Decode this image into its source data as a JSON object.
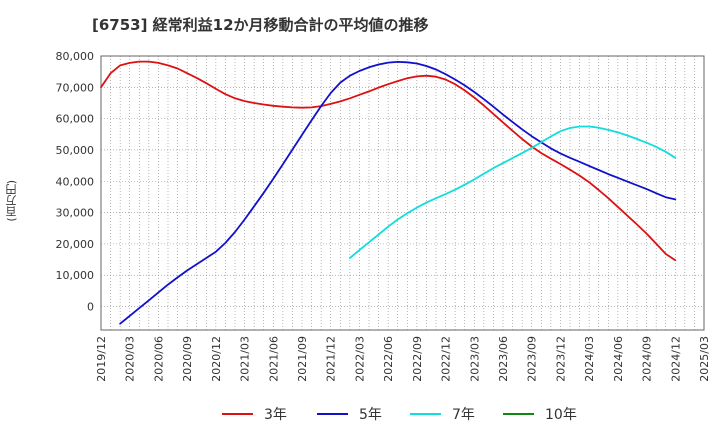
{
  "chart_data": {
    "type": "line",
    "title": "[6753]  経常利益12か月移動合計の平均値の推移",
    "ylabel": "(百万円)",
    "xlabel": "",
    "ylim": [
      -7500,
      80000
    ],
    "yticks": [
      0,
      10000,
      20000,
      30000,
      40000,
      50000,
      60000,
      70000,
      80000
    ],
    "ytick_labels": [
      "0",
      "10,000",
      "20,000",
      "30,000",
      "40,000",
      "50,000",
      "60,000",
      "70,000",
      "80,000"
    ],
    "xticks": [
      "2019/12",
      "2020/03",
      "2020/06",
      "2020/09",
      "2020/12",
      "2021/03",
      "2021/06",
      "2021/09",
      "2021/12",
      "2022/03",
      "2022/06",
      "2022/09",
      "2022/12",
      "2023/03",
      "2023/06",
      "2023/09",
      "2023/12",
      "2024/03",
      "2024/06",
      "2024/09",
      "2024/12",
      "2025/03"
    ],
    "grid": true,
    "legend_position": "bottom",
    "series": [
      {
        "name": "3年",
        "color": "#dd1111",
        "points": [
          [
            "2019/12",
            70000
          ],
          [
            "2020/01",
            74500
          ],
          [
            "2020/02",
            77000
          ],
          [
            "2020/03",
            77800
          ],
          [
            "2020/04",
            78200
          ],
          [
            "2020/05",
            78200
          ],
          [
            "2020/06",
            77800
          ],
          [
            "2020/07",
            77000
          ],
          [
            "2020/08",
            76000
          ],
          [
            "2020/09",
            74500
          ],
          [
            "2020/10",
            73000
          ],
          [
            "2020/11",
            71300
          ],
          [
            "2020/12",
            69500
          ],
          [
            "2021/01",
            67800
          ],
          [
            "2021/02",
            66500
          ],
          [
            "2021/03",
            65600
          ],
          [
            "2021/04",
            65000
          ],
          [
            "2021/05",
            64500
          ],
          [
            "2021/06",
            64100
          ],
          [
            "2021/07",
            63800
          ],
          [
            "2021/08",
            63600
          ],
          [
            "2021/09",
            63500
          ],
          [
            "2021/10",
            63600
          ],
          [
            "2021/11",
            64000
          ],
          [
            "2021/12",
            64700
          ],
          [
            "2022/01",
            65500
          ],
          [
            "2022/02",
            66500
          ],
          [
            "2022/03",
            67600
          ],
          [
            "2022/04",
            68700
          ],
          [
            "2022/05",
            69900
          ],
          [
            "2022/06",
            71000
          ],
          [
            "2022/07",
            72000
          ],
          [
            "2022/08",
            72900
          ],
          [
            "2022/09",
            73500
          ],
          [
            "2022/10",
            73700
          ],
          [
            "2022/11",
            73400
          ],
          [
            "2022/12",
            72500
          ],
          [
            "2023/01",
            71000
          ],
          [
            "2023/02",
            69000
          ],
          [
            "2023/03",
            66700
          ],
          [
            "2023/04",
            64200
          ],
          [
            "2023/05",
            61500
          ],
          [
            "2023/06",
            58800
          ],
          [
            "2023/07",
            56100
          ],
          [
            "2023/08",
            53500
          ],
          [
            "2023/09",
            51100
          ],
          [
            "2023/10",
            49000
          ],
          [
            "2023/11",
            47200
          ],
          [
            "2023/12",
            45500
          ],
          [
            "2024/01",
            43700
          ],
          [
            "2024/02",
            41800
          ],
          [
            "2024/03",
            39700
          ],
          [
            "2024/04",
            37200
          ],
          [
            "2024/05",
            34600
          ],
          [
            "2024/06",
            31800
          ],
          [
            "2024/07",
            29000
          ],
          [
            "2024/08",
            26200
          ],
          [
            "2024/09",
            23300
          ],
          [
            "2024/10",
            20100
          ],
          [
            "2024/11",
            16800
          ],
          [
            "2024/12",
            14800
          ]
        ]
      },
      {
        "name": "5年",
        "color": "#1111cc",
        "points": [
          [
            "2020/02",
            -5500
          ],
          [
            "2020/03",
            -3000
          ],
          [
            "2020/04",
            -500
          ],
          [
            "2020/05",
            2000
          ],
          [
            "2020/06",
            4500
          ],
          [
            "2020/07",
            7000
          ],
          [
            "2020/08",
            9300
          ],
          [
            "2020/09",
            11500
          ],
          [
            "2020/10",
            13500
          ],
          [
            "2020/11",
            15500
          ],
          [
            "2020/12",
            17500
          ],
          [
            "2021/01",
            20300
          ],
          [
            "2021/02",
            23800
          ],
          [
            "2021/03",
            27800
          ],
          [
            "2021/04",
            32000
          ],
          [
            "2021/05",
            36300
          ],
          [
            "2021/06",
            40800
          ],
          [
            "2021/07",
            45400
          ],
          [
            "2021/08",
            50100
          ],
          [
            "2021/09",
            54800
          ],
          [
            "2021/10",
            59500
          ],
          [
            "2021/11",
            64000
          ],
          [
            "2021/12",
            68200
          ],
          [
            "2022/01",
            71500
          ],
          [
            "2022/02",
            73700
          ],
          [
            "2022/03",
            75200
          ],
          [
            "2022/04",
            76400
          ],
          [
            "2022/05",
            77300
          ],
          [
            "2022/06",
            77900
          ],
          [
            "2022/07",
            78100
          ],
          [
            "2022/08",
            78000
          ],
          [
            "2022/09",
            77600
          ],
          [
            "2022/10",
            76800
          ],
          [
            "2022/11",
            75700
          ],
          [
            "2022/12",
            74200
          ],
          [
            "2023/01",
            72500
          ],
          [
            "2023/02",
            70600
          ],
          [
            "2023/03",
            68500
          ],
          [
            "2023/04",
            66200
          ],
          [
            "2023/05",
            63800
          ],
          [
            "2023/06",
            61300
          ],
          [
            "2023/07",
            58900
          ],
          [
            "2023/08",
            56600
          ],
          [
            "2023/09",
            54400
          ],
          [
            "2023/10",
            52400
          ],
          [
            "2023/11",
            50500
          ],
          [
            "2023/12",
            48900
          ],
          [
            "2024/01",
            47500
          ],
          [
            "2024/02",
            46200
          ],
          [
            "2024/03",
            44900
          ],
          [
            "2024/04",
            43600
          ],
          [
            "2024/05",
            42300
          ],
          [
            "2024/06",
            41100
          ],
          [
            "2024/07",
            39900
          ],
          [
            "2024/08",
            38700
          ],
          [
            "2024/09",
            37500
          ],
          [
            "2024/10",
            36200
          ],
          [
            "2024/11",
            34900
          ],
          [
            "2024/12",
            34200
          ]
        ]
      },
      {
        "name": "7年",
        "color": "#11dddd",
        "points": [
          [
            "2022/02",
            15500
          ],
          [
            "2022/03",
            18000
          ],
          [
            "2022/04",
            20500
          ],
          [
            "2022/05",
            23000
          ],
          [
            "2022/06",
            25500
          ],
          [
            "2022/07",
            27800
          ],
          [
            "2022/08",
            29800
          ],
          [
            "2022/09",
            31600
          ],
          [
            "2022/10",
            33200
          ],
          [
            "2022/11",
            34600
          ],
          [
            "2022/12",
            35900
          ],
          [
            "2023/01",
            37300
          ],
          [
            "2023/02",
            38900
          ],
          [
            "2023/03",
            40600
          ],
          [
            "2023/04",
            42400
          ],
          [
            "2023/05",
            44200
          ],
          [
            "2023/06",
            45800
          ],
          [
            "2023/07",
            47400
          ],
          [
            "2023/08",
            49000
          ],
          [
            "2023/09",
            50700
          ],
          [
            "2023/10",
            52500
          ],
          [
            "2023/11",
            54300
          ],
          [
            "2023/12",
            56000
          ],
          [
            "2024/01",
            57000
          ],
          [
            "2024/02",
            57500
          ],
          [
            "2024/03",
            57500
          ],
          [
            "2024/04",
            57100
          ],
          [
            "2024/05",
            56400
          ],
          [
            "2024/06",
            55600
          ],
          [
            "2024/07",
            54600
          ],
          [
            "2024/08",
            53500
          ],
          [
            "2024/09",
            52300
          ],
          [
            "2024/10",
            51000
          ],
          [
            "2024/11",
            49400
          ],
          [
            "2024/12",
            47500
          ]
        ]
      },
      {
        "name": "10年",
        "color": "#118811",
        "points": []
      }
    ]
  }
}
